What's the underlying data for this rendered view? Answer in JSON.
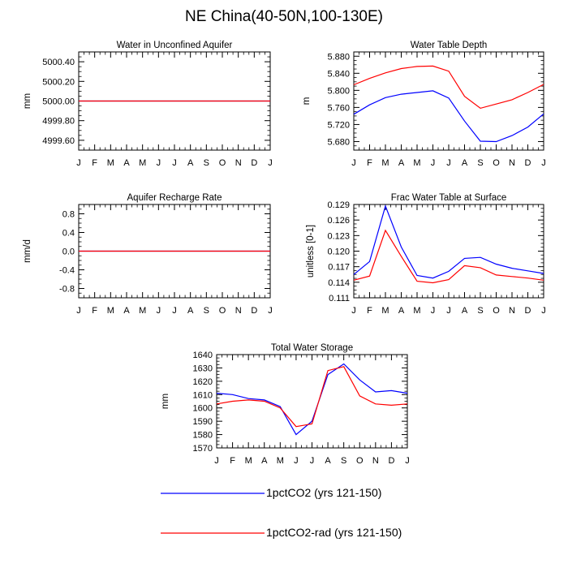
{
  "page": {
    "title": "NE China(40-50N,100-130E)"
  },
  "legend": {
    "series": [
      {
        "name": "1pctCO2 (yrs 121-150)",
        "color": "#0000ff"
      },
      {
        "name": "1pctCO2-rad (yrs 121-150)",
        "color": "#ff0000"
      }
    ]
  },
  "chart_data": [
    {
      "type": "line",
      "title": "Water in Unconfined Aquifer",
      "ylabel": "mm",
      "categories": [
        "J",
        "F",
        "M",
        "A",
        "M",
        "J",
        "J",
        "A",
        "S",
        "O",
        "N",
        "D",
        "J"
      ],
      "ylim": [
        4999.5,
        5000.5
      ],
      "yticks": [
        4999.6,
        4999.8,
        5000.0,
        5000.2,
        5000.4
      ],
      "ytick_labels": [
        "4999.60",
        "4999.80",
        "5000.00",
        "5000.20",
        "5000.40"
      ],
      "series": [
        {
          "name": "1pctCO2 (yrs 121-150)",
          "color": "#0000ff",
          "values": [
            5000,
            5000,
            5000,
            5000,
            5000,
            5000,
            5000,
            5000,
            5000,
            5000,
            5000,
            5000,
            5000
          ]
        },
        {
          "name": "1pctCO2-rad (yrs 121-150)",
          "color": "#ff0000",
          "values": [
            5000,
            5000,
            5000,
            5000,
            5000,
            5000,
            5000,
            5000,
            5000,
            5000,
            5000,
            5000,
            5000
          ]
        }
      ]
    },
    {
      "type": "line",
      "title": "Water Table Depth",
      "ylabel": "m",
      "categories": [
        "J",
        "F",
        "M",
        "A",
        "M",
        "J",
        "J",
        "A",
        "S",
        "O",
        "N",
        "D",
        "J"
      ],
      "ylim": [
        5.66,
        5.89
      ],
      "yticks": [
        5.68,
        5.72,
        5.76,
        5.8,
        5.84,
        5.88
      ],
      "ytick_labels": [
        "5.680",
        "5.720",
        "5.760",
        "5.800",
        "5.840",
        "5.880"
      ],
      "series": [
        {
          "name": "1pctCO2 (yrs 121-150)",
          "color": "#0000ff",
          "values": [
            5.744,
            5.766,
            5.783,
            5.791,
            5.795,
            5.799,
            5.782,
            5.728,
            5.681,
            5.68,
            5.694,
            5.714,
            5.745
          ]
        },
        {
          "name": "1pctCO2-rad (yrs 121-150)",
          "color": "#ff0000",
          "values": [
            5.813,
            5.828,
            5.841,
            5.851,
            5.856,
            5.857,
            5.845,
            5.786,
            5.758,
            5.768,
            5.778,
            5.795,
            5.814
          ]
        }
      ]
    },
    {
      "type": "line",
      "title": "Aquifer Recharge Rate",
      "ylabel": "mm/d",
      "categories": [
        "J",
        "F",
        "M",
        "A",
        "M",
        "J",
        "J",
        "A",
        "S",
        "O",
        "N",
        "D",
        "J"
      ],
      "ylim": [
        -1.0,
        1.0
      ],
      "yticks": [
        -0.8,
        -0.4,
        0.0,
        0.4,
        0.8
      ],
      "ytick_labels": [
        "-0.8",
        "-0.4",
        "0.0",
        "0.4",
        "0.8"
      ],
      "series": [
        {
          "name": "1pctCO2 (yrs 121-150)",
          "color": "#0000ff",
          "values": [
            0,
            0,
            0,
            0,
            0,
            0,
            0,
            0,
            0,
            0,
            0,
            0,
            0
          ]
        },
        {
          "name": "1pctCO2-rad (yrs 121-150)",
          "color": "#ff0000",
          "values": [
            0,
            0,
            0,
            0,
            0,
            0,
            0,
            0,
            0,
            0,
            0,
            0,
            0
          ]
        }
      ]
    },
    {
      "type": "line",
      "title": "Frac Water Table at Surface",
      "ylabel": "unitless [0-1]",
      "categories": [
        "J",
        "F",
        "M",
        "A",
        "M",
        "J",
        "J",
        "A",
        "S",
        "O",
        "N",
        "D",
        "J"
      ],
      "ylim": [
        0.111,
        0.129
      ],
      "yticks": [
        0.111,
        0.114,
        0.117,
        0.12,
        0.123,
        0.126,
        0.129
      ],
      "ytick_labels": [
        "0.111",
        "0.114",
        "0.117",
        "0.120",
        "0.123",
        "0.126",
        "0.129"
      ],
      "series": [
        {
          "name": "1pctCO2 (yrs 121-150)",
          "color": "#0000ff",
          "values": [
            0.1155,
            0.118,
            0.1287,
            0.1208,
            0.1153,
            0.1148,
            0.1161,
            0.1186,
            0.1188,
            0.1175,
            0.1167,
            0.1162,
            0.1157
          ]
        },
        {
          "name": "1pctCO2-rad (yrs 121-150)",
          "color": "#ff0000",
          "values": [
            0.1144,
            0.1152,
            0.124,
            0.119,
            0.1142,
            0.1139,
            0.1145,
            0.1172,
            0.1168,
            0.1154,
            0.1151,
            0.1148,
            0.1144
          ]
        }
      ]
    },
    {
      "type": "line",
      "title": "Total Water Storage",
      "ylabel": "mm",
      "categories": [
        "J",
        "F",
        "M",
        "A",
        "M",
        "J",
        "J",
        "A",
        "S",
        "O",
        "N",
        "D",
        "J"
      ],
      "ylim": [
        1570,
        1640
      ],
      "yticks": [
        1570,
        1580,
        1590,
        1600,
        1610,
        1620,
        1630,
        1640
      ],
      "ytick_labels": [
        "1570",
        "1580",
        "1590",
        "1600",
        "1610",
        "1620",
        "1630",
        "1640"
      ],
      "series": [
        {
          "name": "1pctCO2 (yrs 121-150)",
          "color": "#0000ff",
          "values": [
            1611,
            1610,
            1607,
            1606,
            1601,
            1580,
            1590,
            1625,
            1633,
            1621,
            1612,
            1613,
            1611
          ]
        },
        {
          "name": "1pctCO2-rad (yrs 121-150)",
          "color": "#ff0000",
          "values": [
            1603,
            1605,
            1606,
            1605,
            1600,
            1586,
            1588,
            1628,
            1631,
            1609,
            1603,
            1602,
            1603
          ]
        }
      ]
    }
  ]
}
